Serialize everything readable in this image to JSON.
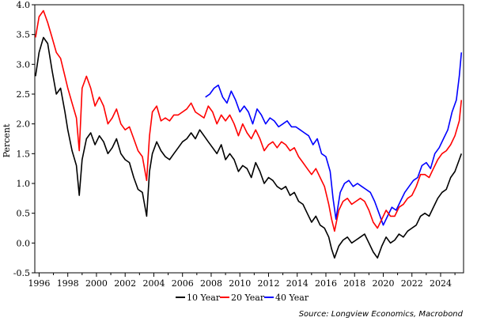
{
  "chart_data": {
    "type": "line",
    "ylabel": "Percent",
    "xlim": [
      1995.7,
      2025.6
    ],
    "ylim": [
      -0.5,
      4.0
    ],
    "x_ticks": [
      "1996",
      "1998",
      "2000",
      "2002",
      "2004",
      "2006",
      "2008",
      "2010",
      "2012",
      "2014",
      "2016",
      "2018",
      "2020",
      "2022",
      "2024"
    ],
    "y_ticks": [
      "4.0",
      "3.5",
      "3.0",
      "2.5",
      "2.0",
      "1.5",
      "1.0",
      "0.5",
      "0.0",
      "-0.5"
    ],
    "legend_position": "bottom-center",
    "source": "Source: Longview Economics, Macrobond",
    "series": [
      {
        "name": "10 Year",
        "color": "#000000",
        "x": [
          1995.75,
          1996.0,
          1996.3,
          1996.6,
          1996.9,
          1997.2,
          1997.5,
          1997.8,
          1998.0,
          1998.3,
          1998.6,
          1998.8,
          1999.0,
          1999.3,
          1999.6,
          1999.9,
          2000.2,
          2000.5,
          2000.8,
          2001.1,
          2001.4,
          2001.7,
          2002.0,
          2002.3,
          2002.6,
          2002.9,
          2003.2,
          2003.5,
          2003.7,
          2003.9,
          2004.2,
          2004.5,
          2004.8,
          2005.1,
          2005.4,
          2005.7,
          2006.0,
          2006.3,
          2006.6,
          2006.9,
          2007.2,
          2007.5,
          2007.8,
          2008.1,
          2008.4,
          2008.7,
          2009.0,
          2009.3,
          2009.6,
          2009.9,
          2010.2,
          2010.5,
          2010.8,
          2011.1,
          2011.4,
          2011.7,
          2012.0,
          2012.3,
          2012.6,
          2012.9,
          2013.2,
          2013.5,
          2013.8,
          2014.1,
          2014.4,
          2014.7,
          2015.0,
          2015.3,
          2015.6,
          2015.9,
          2016.2,
          2016.4,
          2016.6,
          2016.9,
          2017.2,
          2017.5,
          2017.8,
          2018.1,
          2018.4,
          2018.7,
          2019.0,
          2019.3,
          2019.6,
          2019.9,
          2020.2,
          2020.5,
          2020.8,
          2021.1,
          2021.4,
          2021.7,
          2022.0,
          2022.3,
          2022.6,
          2022.9,
          2023.2,
          2023.5,
          2023.8,
          2024.1,
          2024.4,
          2024.7,
          2025.0,
          2025.3,
          2025.45
        ],
        "values": [
          2.8,
          3.2,
          3.45,
          3.35,
          2.9,
          2.5,
          2.6,
          2.2,
          1.9,
          1.55,
          1.3,
          0.8,
          1.4,
          1.75,
          1.85,
          1.65,
          1.8,
          1.7,
          1.5,
          1.6,
          1.75,
          1.5,
          1.4,
          1.35,
          1.1,
          0.9,
          0.85,
          0.45,
          1.2,
          1.5,
          1.7,
          1.55,
          1.45,
          1.4,
          1.5,
          1.6,
          1.7,
          1.75,
          1.85,
          1.75,
          1.9,
          1.8,
          1.7,
          1.6,
          1.5,
          1.65,
          1.4,
          1.5,
          1.4,
          1.2,
          1.3,
          1.25,
          1.1,
          1.35,
          1.2,
          1.0,
          1.1,
          1.05,
          0.95,
          0.9,
          0.95,
          0.8,
          0.85,
          0.7,
          0.65,
          0.5,
          0.35,
          0.45,
          0.3,
          0.25,
          0.1,
          -0.1,
          -0.25,
          -0.05,
          0.05,
          0.1,
          0.0,
          0.05,
          0.1,
          0.15,
          0.0,
          -0.15,
          -0.25,
          -0.05,
          0.1,
          0.0,
          0.05,
          0.15,
          0.1,
          0.2,
          0.25,
          0.3,
          0.45,
          0.5,
          0.45,
          0.6,
          0.75,
          0.85,
          0.9,
          1.1,
          1.2,
          1.4,
          1.5
        ]
      },
      {
        "name": "20 Year",
        "color": "#ff0000",
        "x": [
          1995.75,
          1996.0,
          1996.3,
          1996.6,
          1996.9,
          1997.2,
          1997.5,
          1997.8,
          1998.0,
          1998.3,
          1998.6,
          1998.8,
          1999.0,
          1999.3,
          1999.6,
          1999.9,
          2000.2,
          2000.5,
          2000.8,
          2001.1,
          2001.4,
          2001.7,
          2002.0,
          2002.3,
          2002.6,
          2002.9,
          2003.2,
          2003.5,
          2003.7,
          2003.9,
          2004.2,
          2004.5,
          2004.8,
          2005.1,
          2005.4,
          2005.7,
          2006.0,
          2006.3,
          2006.6,
          2006.9,
          2007.2,
          2007.5,
          2007.8,
          2008.1,
          2008.4,
          2008.7,
          2009.0,
          2009.3,
          2009.6,
          2009.9,
          2010.2,
          2010.5,
          2010.8,
          2011.1,
          2011.4,
          2011.7,
          2012.0,
          2012.3,
          2012.6,
          2012.9,
          2013.2,
          2013.5,
          2013.8,
          2014.1,
          2014.4,
          2014.7,
          2015.0,
          2015.3,
          2015.6,
          2015.9,
          2016.2,
          2016.4,
          2016.6,
          2016.9,
          2017.2,
          2017.5,
          2017.8,
          2018.1,
          2018.4,
          2018.7,
          2019.0,
          2019.3,
          2019.6,
          2019.9,
          2020.2,
          2020.5,
          2020.8,
          2021.1,
          2021.4,
          2021.7,
          2022.0,
          2022.3,
          2022.6,
          2022.9,
          2023.2,
          2023.5,
          2023.8,
          2024.1,
          2024.4,
          2024.7,
          2025.0,
          2025.3,
          2025.45
        ],
        "values": [
          3.45,
          3.8,
          3.9,
          3.7,
          3.45,
          3.2,
          3.1,
          2.8,
          2.6,
          2.35,
          2.1,
          1.55,
          2.6,
          2.8,
          2.6,
          2.3,
          2.45,
          2.3,
          2.0,
          2.1,
          2.25,
          2.0,
          1.9,
          1.95,
          1.75,
          1.55,
          1.45,
          1.05,
          1.8,
          2.2,
          2.3,
          2.05,
          2.1,
          2.05,
          2.15,
          2.15,
          2.2,
          2.25,
          2.35,
          2.2,
          2.15,
          2.1,
          2.3,
          2.2,
          2.0,
          2.15,
          2.05,
          2.15,
          2.0,
          1.8,
          2.0,
          1.85,
          1.75,
          1.9,
          1.75,
          1.55,
          1.65,
          1.7,
          1.6,
          1.7,
          1.65,
          1.55,
          1.6,
          1.45,
          1.35,
          1.25,
          1.15,
          1.25,
          1.1,
          0.95,
          0.65,
          0.4,
          0.2,
          0.55,
          0.7,
          0.75,
          0.65,
          0.7,
          0.75,
          0.7,
          0.55,
          0.35,
          0.25,
          0.4,
          0.55,
          0.45,
          0.45,
          0.6,
          0.65,
          0.75,
          0.8,
          0.95,
          1.15,
          1.15,
          1.1,
          1.25,
          1.4,
          1.5,
          1.55,
          1.65,
          1.8,
          2.05,
          2.4
        ]
      },
      {
        "name": "40 Year",
        "color": "#0000ff",
        "x": [
          2007.6,
          2007.9,
          2008.2,
          2008.5,
          2008.8,
          2009.1,
          2009.4,
          2009.7,
          2010.0,
          2010.3,
          2010.6,
          2010.9,
          2011.2,
          2011.5,
          2011.8,
          2012.1,
          2012.4,
          2012.7,
          2013.0,
          2013.3,
          2013.6,
          2013.9,
          2014.2,
          2014.5,
          2014.8,
          2015.1,
          2015.4,
          2015.7,
          2016.0,
          2016.3,
          2016.5,
          2016.7,
          2017.0,
          2017.3,
          2017.6,
          2017.9,
          2018.2,
          2018.5,
          2018.8,
          2019.1,
          2019.4,
          2019.7,
          2020.0,
          2020.3,
          2020.6,
          2020.9,
          2021.2,
          2021.5,
          2021.8,
          2022.1,
          2022.4,
          2022.7,
          2023.0,
          2023.3,
          2023.6,
          2023.9,
          2024.2,
          2024.5,
          2024.8,
          2025.1,
          2025.3,
          2025.45
        ],
        "values": [
          2.45,
          2.5,
          2.6,
          2.65,
          2.45,
          2.35,
          2.55,
          2.4,
          2.2,
          2.3,
          2.2,
          2.0,
          2.25,
          2.15,
          2.0,
          2.1,
          2.05,
          1.95,
          2.0,
          2.05,
          1.95,
          1.95,
          1.9,
          1.85,
          1.8,
          1.65,
          1.75,
          1.5,
          1.45,
          1.2,
          0.75,
          0.4,
          0.85,
          1.0,
          1.05,
          0.95,
          1.0,
          0.95,
          0.9,
          0.85,
          0.7,
          0.5,
          0.3,
          0.45,
          0.6,
          0.55,
          0.7,
          0.85,
          0.95,
          1.05,
          1.1,
          1.3,
          1.35,
          1.25,
          1.5,
          1.6,
          1.75,
          1.9,
          2.2,
          2.4,
          2.8,
          3.2
        ]
      }
    ]
  }
}
